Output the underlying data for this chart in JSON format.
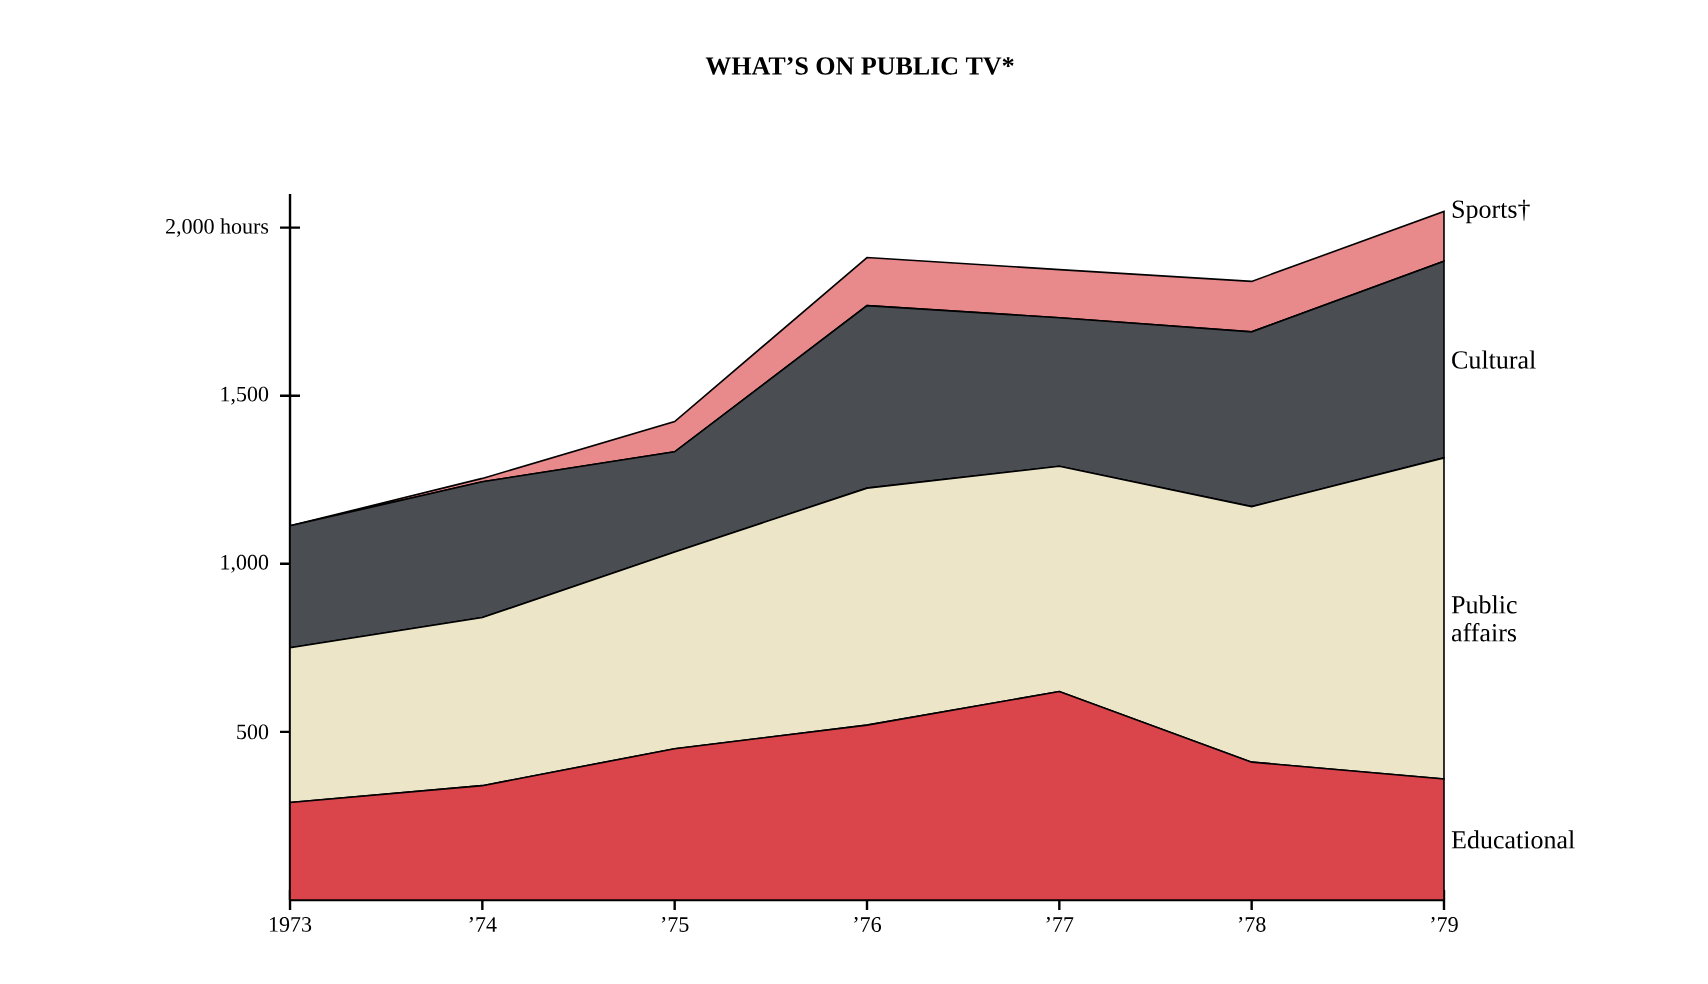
{
  "chart_data": {
    "type": "area",
    "stacked": true,
    "title": "WHAT’S ON PUBLIC TV*",
    "categories": [
      "1973",
      "’74",
      "’75",
      "’76",
      "’77",
      "’78",
      "’79"
    ],
    "series": [
      {
        "name": "Educational",
        "color": "#d9454a",
        "values": [
          290,
          340,
          450,
          520,
          620,
          410,
          360
        ]
      },
      {
        "name": "Public affairs",
        "color": "#ece5c8",
        "values": [
          460,
          500,
          585,
          705,
          670,
          760,
          955
        ]
      },
      {
        "name": "Cultural",
        "color": "#4a4d52",
        "values": [
          363,
          404,
          298,
          543,
          442,
          520,
          585
        ]
      },
      {
        "name": "Sports†",
        "color": "#e8898b",
        "values": [
          0,
          10,
          90,
          143,
          143,
          150,
          148
        ]
      }
    ],
    "ylim": [
      0,
      2100
    ],
    "yticks": [
      500,
      {
        "value": 1000,
        "label": "1,000"
      },
      {
        "value": 1500,
        "label": "1,500"
      },
      {
        "value": 2000,
        "label": "2,000 hours"
      }
    ],
    "grid": false
  }
}
